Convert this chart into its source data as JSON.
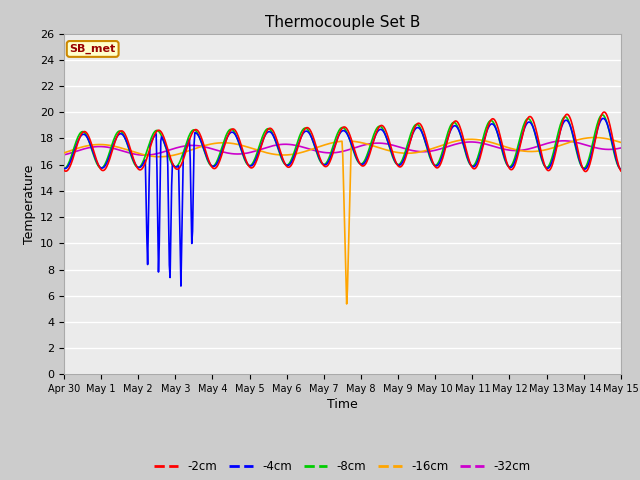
{
  "title": "Thermocouple Set B",
  "xlabel": "Time",
  "ylabel": "Temperature",
  "annotation": "SB_met",
  "ylim": [
    0,
    26
  ],
  "yticks": [
    0,
    2,
    4,
    6,
    8,
    10,
    12,
    14,
    16,
    18,
    20,
    22,
    24,
    26
  ],
  "xtick_labels": [
    "Apr 30",
    "May 1",
    "May 2",
    "May 3",
    "May 4",
    "May 5",
    "May 6",
    "May 7",
    "May 8",
    "May 9",
    "May 10",
    "May 11",
    "May 12",
    "May 13",
    "May 14",
    "May 15"
  ],
  "series": {
    "-2cm": {
      "color": "#ff0000",
      "lw": 1.2
    },
    "-4cm": {
      "color": "#0000ff",
      "lw": 1.2
    },
    "-8cm": {
      "color": "#00cc00",
      "lw": 1.2
    },
    "-16cm": {
      "color": "#ffa500",
      "lw": 1.2
    },
    "-32cm": {
      "color": "#cc00cc",
      "lw": 1.2
    }
  },
  "bg_color": "#cccccc",
  "plot_bg_color": "#ebebeb",
  "grid_color": "#ffffff",
  "annotation_bg": "#ffffcc",
  "annotation_border": "#cc8800"
}
